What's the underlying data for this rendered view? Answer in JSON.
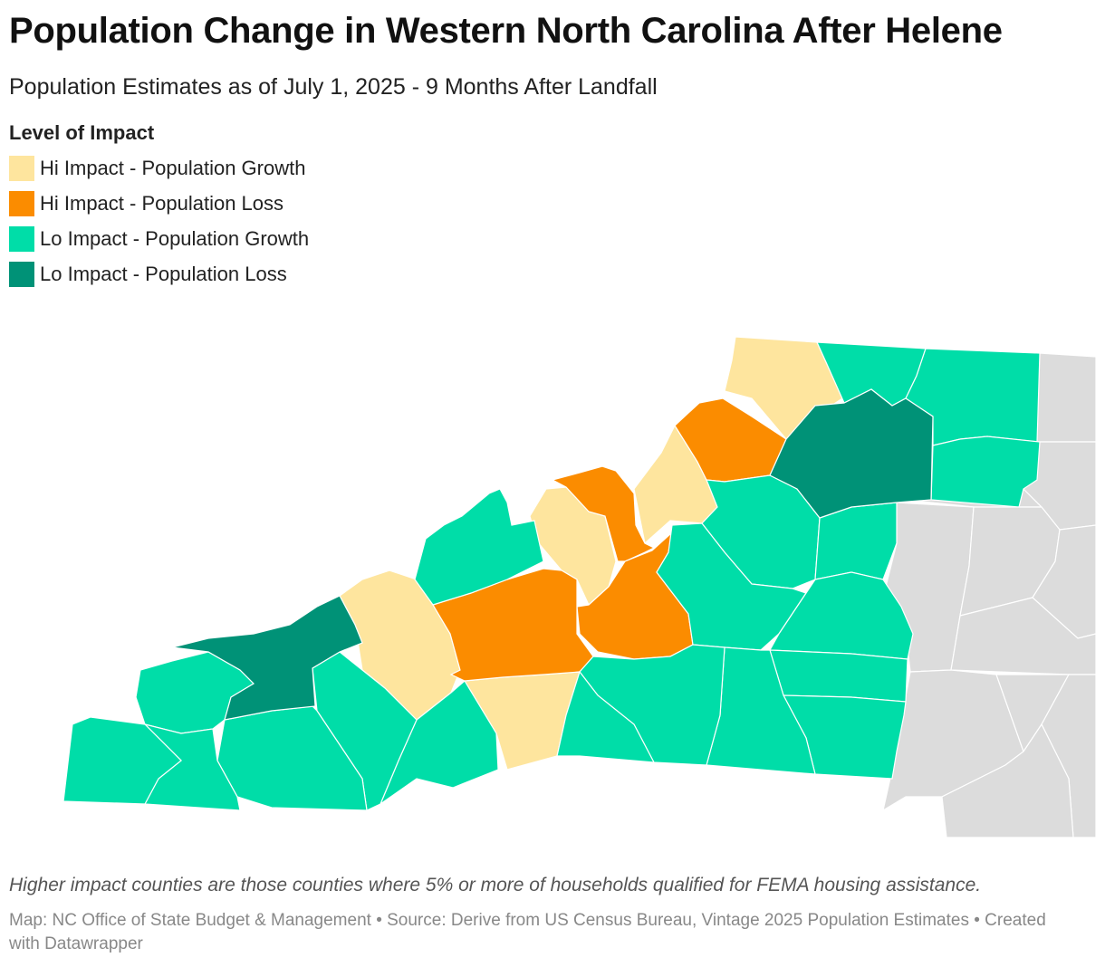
{
  "header": {
    "title": "Population Change in Western North Carolina After Helene",
    "subtitle": "Population Estimates as of July 1, 2025 - 9 Months After Landfall"
  },
  "legend": {
    "title": "Level of Impact",
    "items": [
      {
        "label": "Hi Impact - Population Growth",
        "color": "#fee59e"
      },
      {
        "label": "Hi Impact - Population Loss",
        "color": "#fb8c00"
      },
      {
        "label": "Lo Impact - Population Growth",
        "color": "#00dda8"
      },
      {
        "label": "Lo Impact - Population Loss",
        "color": "#009277"
      }
    ]
  },
  "map": {
    "region_fill_other": "#dcdcdc",
    "county_categories": {
      "hi_growth": "Hi Impact - Population Growth",
      "hi_loss": "Hi Impact - Population Loss",
      "lo_growth": "Lo Impact - Population Growth",
      "lo_loss": "Lo Impact - Population Loss"
    }
  },
  "footer": {
    "note": "Higher impact counties are those counties where 5% or more of households qualified for FEMA housing assistance.",
    "source": "Map: NC Office of State Budget & Management • Source: Derive from US Census Bureau, Vintage 2025 Population Estimates • Created with Datawrapper"
  }
}
